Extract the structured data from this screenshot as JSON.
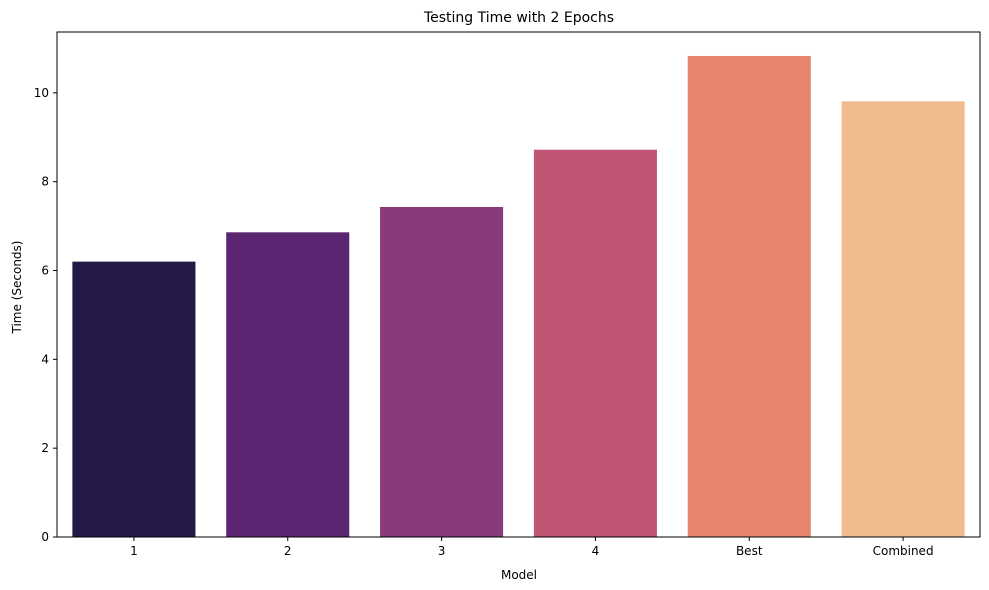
{
  "chart_data": {
    "type": "bar",
    "title": "Testing Time with 2 Epochs",
    "xlabel": "Model",
    "ylabel": "Time (Seconds)",
    "categories": [
      "1",
      "2",
      "3",
      "4",
      "Best",
      "Combined"
    ],
    "values": [
      6.2,
      6.86,
      7.43,
      8.72,
      10.83,
      9.81
    ],
    "colors": [
      "#251a47",
      "#5b2572",
      "#883b7b",
      "#c05574",
      "#e68470",
      "#efbc8f"
    ],
    "ylim": [
      0,
      11.37
    ],
    "yticks": [
      0,
      2,
      4,
      6,
      8,
      10
    ],
    "grid": false,
    "legend": "none"
  }
}
